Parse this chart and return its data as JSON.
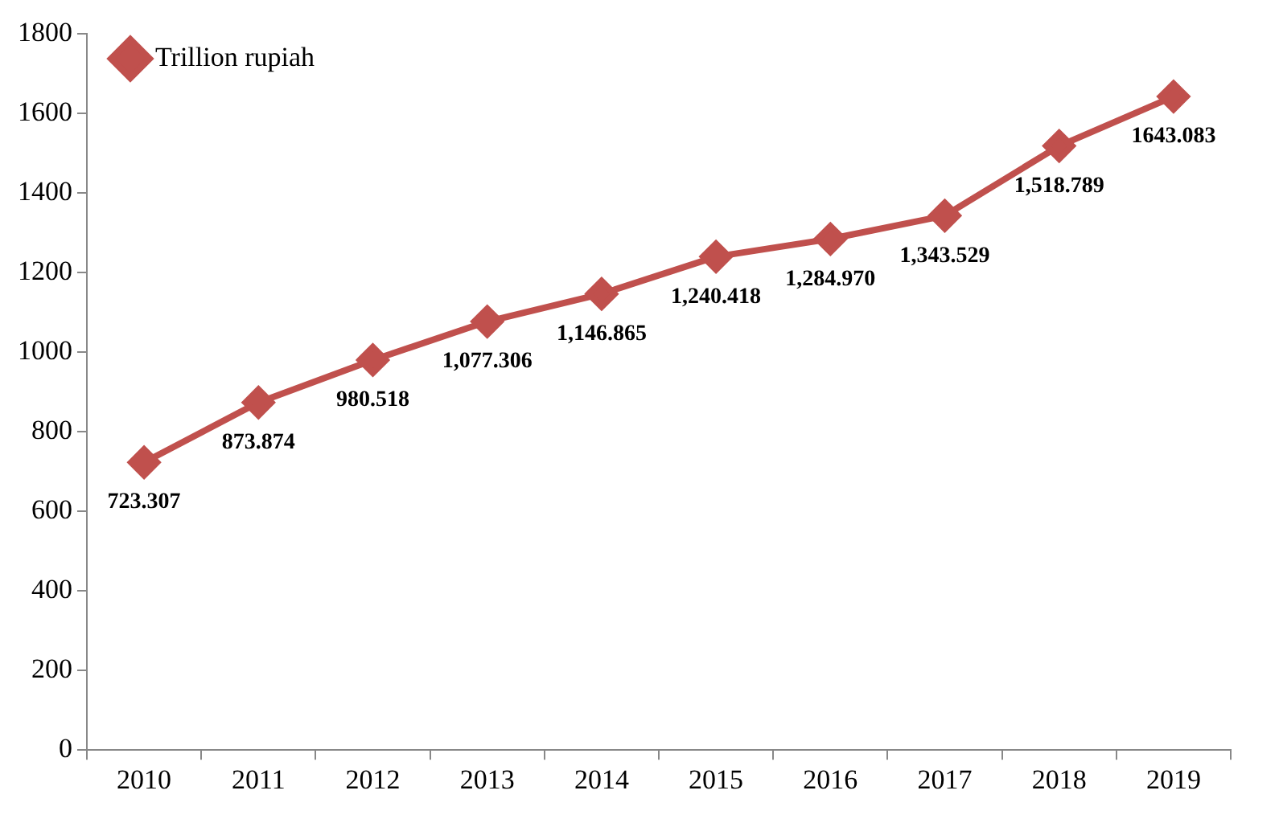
{
  "chart_data": {
    "type": "line",
    "categories": [
      "2010",
      "2011",
      "2012",
      "2013",
      "2014",
      "2015",
      "2016",
      "2017",
      "2018",
      "2019"
    ],
    "series": [
      {
        "name": "Trillion rupiah",
        "color": "#c0504d",
        "values": [
          723.307,
          873.874,
          980.518,
          1077.306,
          1146.865,
          1240.418,
          1284.97,
          1343.529,
          1518.789,
          1643.083
        ],
        "value_labels": [
          "723.307",
          "873.874",
          "980.518",
          "1,077.306",
          "1,146.865",
          "1,240.418",
          "1,284.970",
          "1,343.529",
          "1,518.789",
          "1643.083"
        ]
      }
    ],
    "ylim": [
      0,
      1800
    ],
    "yticks": [
      0,
      200,
      400,
      600,
      800,
      1000,
      1200,
      1400,
      1600,
      1800
    ],
    "grid": false,
    "legend": "top left",
    "marker": "diamond",
    "line_style": "solid"
  }
}
